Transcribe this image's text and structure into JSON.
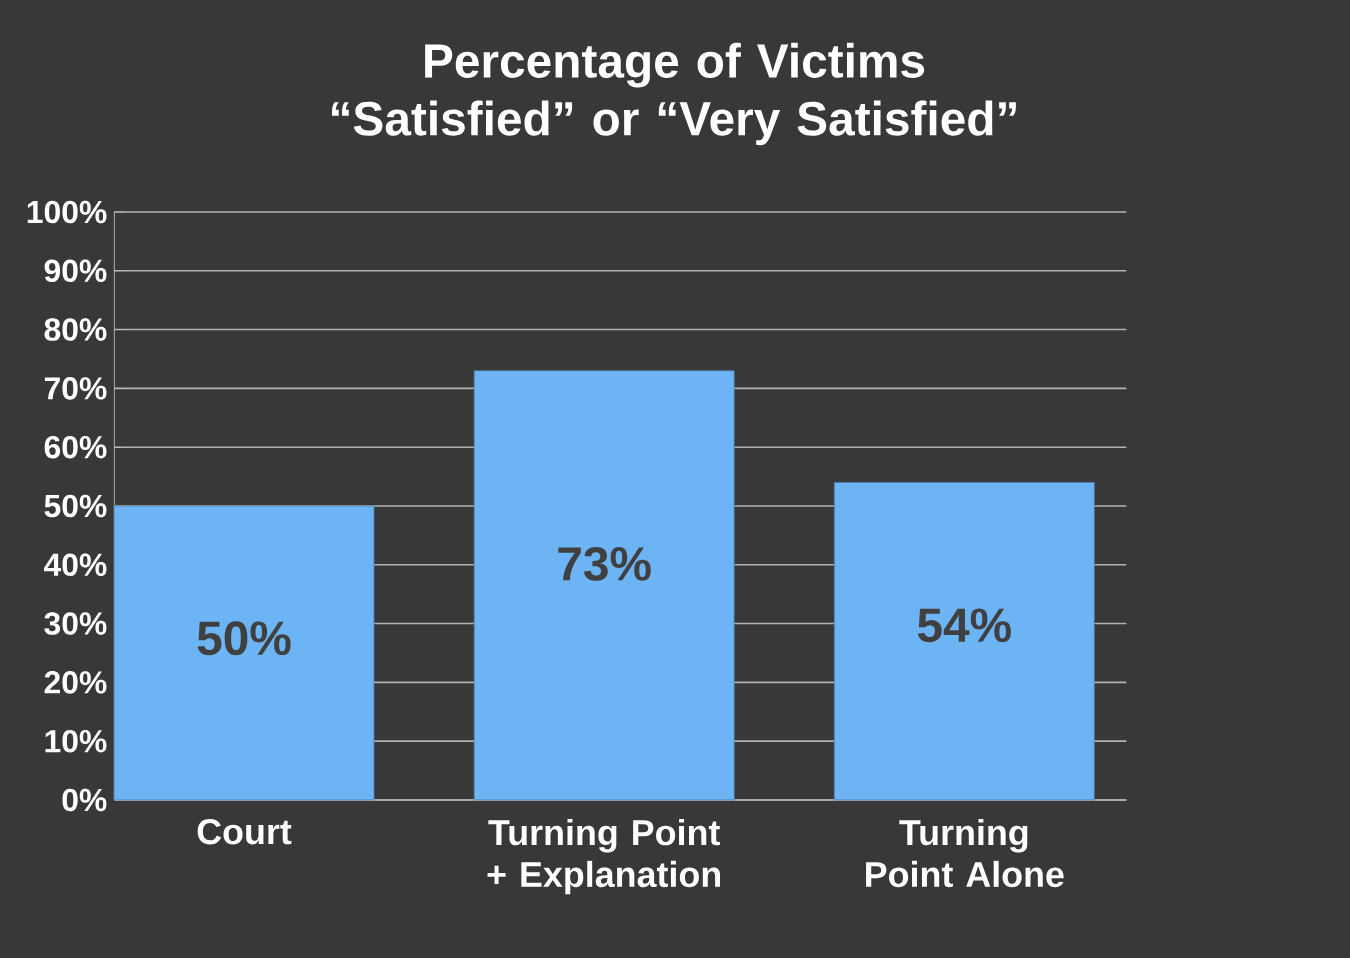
{
  "chart_data": {
    "type": "bar",
    "title": "Percentage of Victims “Satisfied” or “Very Satisfied”",
    "categories": [
      "Court",
      "Turning Point + Explanation",
      "Turning Point Alone"
    ],
    "values": [
      50,
      73,
      54
    ],
    "value_labels": [
      "50%",
      "73%",
      "54%"
    ],
    "color": "#6cb4f4",
    "ylim": [
      0,
      100
    ],
    "yticks": [
      {
        "value": 0,
        "label": "0%"
      },
      {
        "value": 10,
        "label": "10%"
      },
      {
        "value": 20,
        "label": "20%"
      },
      {
        "value": 30,
        "label": "30%"
      },
      {
        "value": 40,
        "label": "40%"
      },
      {
        "value": 50,
        "label": "50%"
      },
      {
        "value": 60,
        "label": "60%"
      },
      {
        "value": 70,
        "label": "70%"
      },
      {
        "value": 80,
        "label": "80%"
      },
      {
        "value": 90,
        "label": "90%"
      },
      {
        "value": 100,
        "label": "100%"
      }
    ],
    "grid": "y"
  }
}
